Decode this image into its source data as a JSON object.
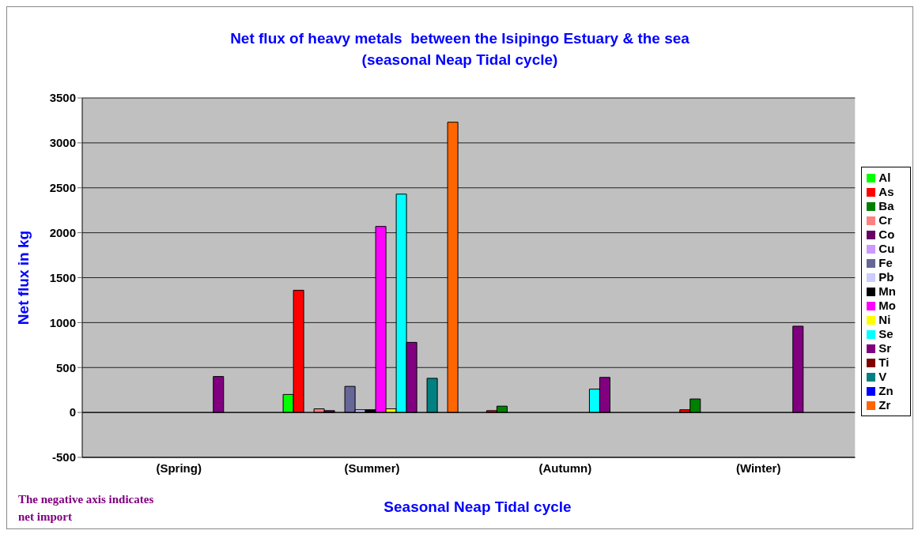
{
  "chart_data": {
    "type": "bar",
    "title": "Net flux of heavy metals  between the Isipingo Estuary & the sea",
    "subtitle": "(seasonal Neap Tidal cycle)",
    "xlabel": "Seasonal Neap Tidal cycle",
    "ylabel": "Net flux in kg",
    "categories": [
      "(Spring)",
      "(Summer)",
      "(Autumn)",
      "(Winter)"
    ],
    "series": [
      {
        "name": "Al",
        "color": "#00ff00",
        "values": [
          null,
          200,
          null,
          null
        ]
      },
      {
        "name": "As",
        "color": "#ff0000",
        "values": [
          null,
          1360,
          20,
          30
        ]
      },
      {
        "name": "Ba",
        "color": "#008000",
        "values": [
          null,
          null,
          70,
          150
        ]
      },
      {
        "name": "Cr",
        "color": "#ff8080",
        "values": [
          null,
          40,
          null,
          null
        ]
      },
      {
        "name": "Co",
        "color": "#660066",
        "values": [
          null,
          20,
          null,
          null
        ]
      },
      {
        "name": "Cu",
        "color": "#cc99ff",
        "values": [
          null,
          null,
          null,
          null
        ]
      },
      {
        "name": "Fe",
        "color": "#666699",
        "values": [
          null,
          290,
          null,
          null
        ]
      },
      {
        "name": "Pb",
        "color": "#ccccff",
        "values": [
          null,
          30,
          null,
          null
        ]
      },
      {
        "name": "Mn",
        "color": "#000000",
        "values": [
          null,
          30,
          null,
          null
        ]
      },
      {
        "name": "Mo",
        "color": "#ff00ff",
        "values": [
          null,
          2070,
          null,
          null
        ]
      },
      {
        "name": "Ni",
        "color": "#ffff00",
        "values": [
          null,
          40,
          null,
          null
        ]
      },
      {
        "name": "Se",
        "color": "#00ffff",
        "values": [
          null,
          2430,
          260,
          null
        ]
      },
      {
        "name": "Sr",
        "color": "#800080",
        "values": [
          400,
          780,
          390,
          960
        ]
      },
      {
        "name": "Ti",
        "color": "#800000",
        "values": [
          null,
          null,
          null,
          null
        ]
      },
      {
        "name": "V",
        "color": "#008080",
        "values": [
          null,
          380,
          null,
          null
        ]
      },
      {
        "name": "Zn",
        "color": "#0000ff",
        "values": [
          null,
          null,
          null,
          null
        ]
      },
      {
        "name": "Zr",
        "color": "#ff6600",
        "values": [
          null,
          3230,
          null,
          null
        ]
      }
    ],
    "ylim": [
      -500,
      3500
    ],
    "yticks": [
      -500,
      0,
      500,
      1000,
      1500,
      2000,
      2500,
      3000,
      3500
    ],
    "grid": "y",
    "legend": "right",
    "annotations": [
      "The negative axis indicates net import"
    ]
  }
}
